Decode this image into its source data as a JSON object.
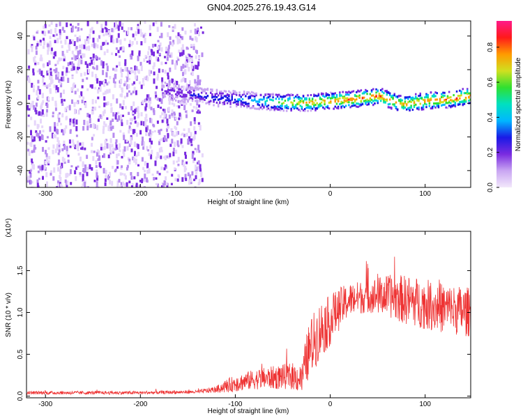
{
  "figure": {
    "title": "GN04.2025.276.19.43.G14"
  },
  "chart_data": [
    {
      "type": "heatmap",
      "xlabel": "Height of straight line (km)",
      "ylabel": "Frequency (Hz)",
      "xlim": [
        -320,
        148
      ],
      "ylim": [
        -50,
        49
      ],
      "xticks": [
        -300,
        -200,
        -100,
        0,
        100
      ],
      "xtick_labels": [
        "-300",
        "-200",
        "-100",
        "0",
        "100"
      ],
      "yticks": [
        -40,
        -20,
        0,
        20,
        40
      ],
      "ytick_labels": [
        "-40",
        "-20",
        "0",
        "20",
        "40"
      ],
      "colorbar": {
        "label": "Normalized spectral amplitude",
        "range": [
          0,
          0.95
        ],
        "ticks": [
          0.0,
          0.2,
          0.4,
          0.6,
          0.8
        ],
        "tick_labels": [
          "0.0",
          "0.2",
          "0.4",
          "0.6",
          "0.8"
        ],
        "colors": [
          "#f2e8fb",
          "#c9a6f2",
          "#7a2be0",
          "#1a1ae6",
          "#00b7ff",
          "#00e0c0",
          "#30e030",
          "#d0e020",
          "#ff9a00",
          "#ff1a1a",
          "#ff1a8a"
        ]
      },
      "noise_region_x": [
        -320,
        -135
      ],
      "ridge_x": [
        -175,
        -150,
        -125,
        -100,
        -75,
        -50,
        -25,
        0,
        25,
        50,
        75,
        100,
        125,
        148
      ],
      "ridge_freq": [
        8,
        6,
        4,
        3,
        2,
        1,
        1,
        2,
        3,
        5,
        0,
        2,
        3,
        5
      ],
      "ridge_amplitude": [
        0.2,
        0.25,
        0.3,
        0.35,
        0.45,
        0.65,
        0.75,
        0.8,
        0.82,
        0.85,
        0.75,
        0.8,
        0.85,
        0.85
      ]
    },
    {
      "type": "line",
      "xlabel": "Height of straight line (km)",
      "ylabel": "SNR (10 * v/v)",
      "y_scale_label": "(x10⁴)",
      "xlim": [
        -320,
        148
      ],
      "ylim": [
        -0.02,
        1.97
      ],
      "xticks": [
        -300,
        -200,
        -100,
        0,
        100
      ],
      "xtick_labels": [
        "-300",
        "-200",
        "-100",
        "0",
        "100"
      ],
      "yticks": [
        0.0,
        0.5,
        1.0,
        1.5
      ],
      "ytick_labels": [
        "0.0",
        "0.5",
        "1.0",
        "1.5"
      ],
      "series": [
        {
          "name": "SNR",
          "color": "#ee3333",
          "x": [
            -320,
            -200,
            -140,
            -120,
            -110,
            -100,
            -80,
            -60,
            -40,
            -30,
            -25,
            -20,
            -10,
            0,
            10,
            20,
            40,
            60,
            80,
            100,
            120,
            148
          ],
          "mean": [
            0.04,
            0.04,
            0.05,
            0.08,
            0.12,
            0.15,
            0.2,
            0.22,
            0.24,
            0.2,
            0.45,
            0.6,
            0.8,
            0.9,
            1.05,
            1.15,
            1.2,
            1.2,
            1.15,
            1.1,
            1.05,
            1.0
          ],
          "spread": [
            0.02,
            0.02,
            0.02,
            0.04,
            0.08,
            0.1,
            0.12,
            0.14,
            0.16,
            0.18,
            0.3,
            0.35,
            0.35,
            0.3,
            0.25,
            0.2,
            0.2,
            0.25,
            0.3,
            0.3,
            0.3,
            0.3
          ]
        }
      ]
    }
  ]
}
